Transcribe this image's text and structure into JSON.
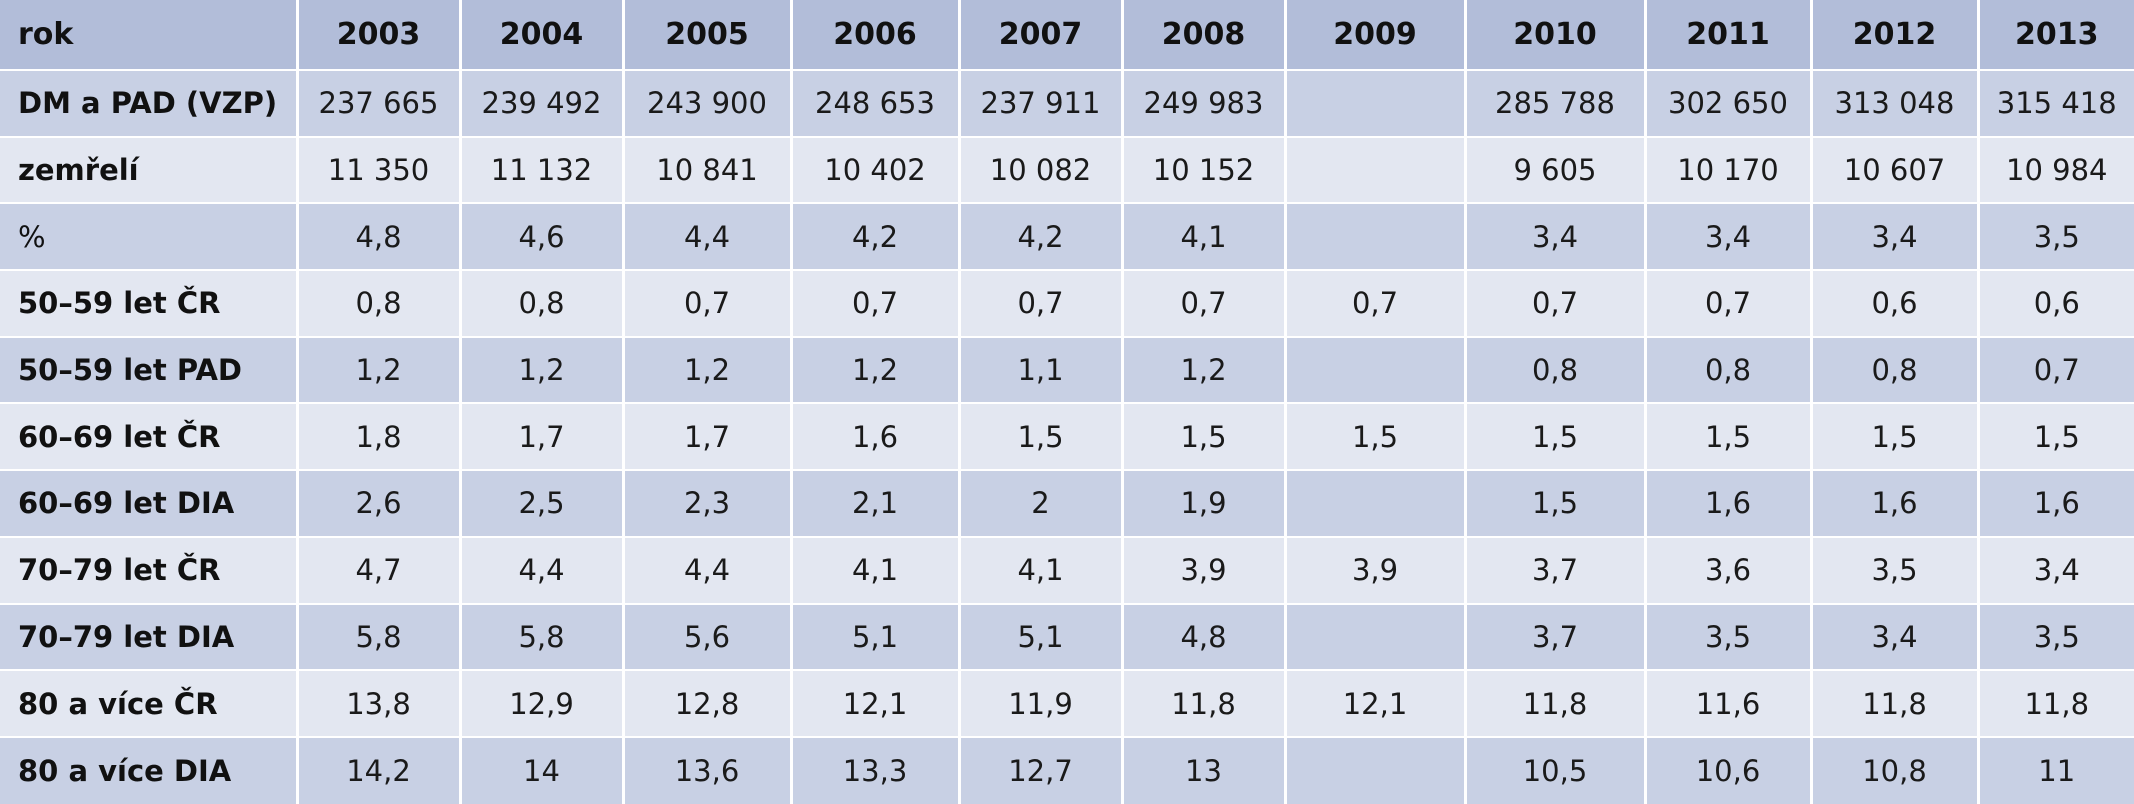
{
  "table": {
    "header": [
      "rok",
      "2003",
      "2004",
      "2005",
      "2006",
      "2007",
      "2008",
      "2009",
      "2010",
      "2011",
      "2012",
      "2013"
    ],
    "rows": [
      {
        "label": "DM a PAD (VZP)",
        "bold": true,
        "values": [
          "237 665",
          "239 492",
          "243 900",
          "248 653",
          "237 911",
          "249 983",
          "",
          "285 788",
          "302 650",
          "313 048",
          "315 418"
        ]
      },
      {
        "label": "zemřelí",
        "bold": true,
        "values": [
          "11 350",
          "11 132",
          "10 841",
          "10 402",
          "10 082",
          "10 152",
          "",
          "9 605",
          "10 170",
          "10 607",
          "10 984"
        ]
      },
      {
        "label": "%",
        "bold": false,
        "values": [
          "4,8",
          "4,6",
          "4,4",
          "4,2",
          "4,2",
          "4,1",
          "",
          "3,4",
          "3,4",
          "3,4",
          "3,5"
        ]
      },
      {
        "label": "50–59 let ČR",
        "bold": true,
        "values": [
          "0,8",
          "0,8",
          "0,7",
          "0,7",
          "0,7",
          "0,7",
          "0,7",
          "0,7",
          "0,7",
          "0,6",
          "0,6"
        ]
      },
      {
        "label": "50–59 let PAD",
        "bold": true,
        "values": [
          "1,2",
          "1,2",
          "1,2",
          "1,2",
          "1,1",
          "1,2",
          "",
          "0,8",
          "0,8",
          "0,8",
          "0,7"
        ]
      },
      {
        "label": "60–69 let ČR",
        "bold": true,
        "values": [
          "1,8",
          "1,7",
          "1,7",
          "1,6",
          "1,5",
          "1,5",
          "1,5",
          "1,5",
          "1,5",
          "1,5",
          "1,5"
        ]
      },
      {
        "label": "60–69 let DIA",
        "bold": true,
        "values": [
          "2,6",
          "2,5",
          "2,3",
          "2,1",
          "2",
          "1,9",
          "",
          "1,5",
          "1,6",
          "1,6",
          "1,6"
        ]
      },
      {
        "label": "70–79 let ČR",
        "bold": true,
        "values": [
          "4,7",
          "4,4",
          "4,4",
          "4,1",
          "4,1",
          "3,9",
          "3,9",
          "3,7",
          "3,6",
          "3,5",
          "3,4"
        ]
      },
      {
        "label": "70–79 let DIA",
        "bold": true,
        "values": [
          "5,8",
          "5,8",
          "5,6",
          "5,1",
          "5,1",
          "4,8",
          "",
          "3,7",
          "3,5",
          "3,4",
          "3,5"
        ]
      },
      {
        "label": "80 a více ČR",
        "bold": true,
        "values": [
          "13,8",
          "12,9",
          "12,8",
          "12,1",
          "11,9",
          "11,8",
          "12,1",
          "11,8",
          "11,6",
          "11,8",
          "11,8"
        ]
      },
      {
        "label": "80 a více DIA",
        "bold": true,
        "values": [
          "14,2",
          "14",
          "13,6",
          "13,3",
          "12,7",
          "13",
          "",
          "10,5",
          "10,6",
          "10,8",
          "11"
        ]
      }
    ]
  }
}
